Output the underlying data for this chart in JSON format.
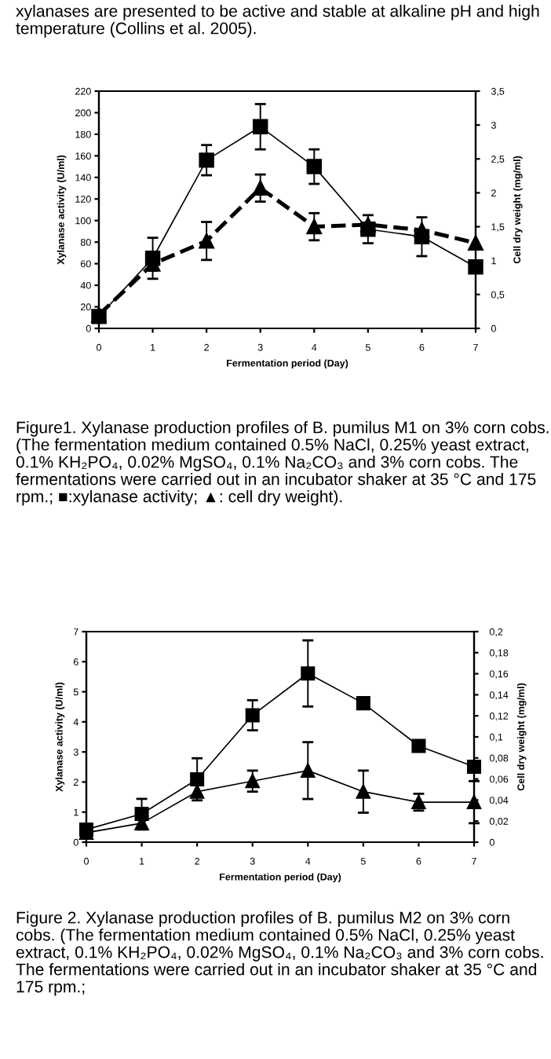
{
  "chart_data": [
    {
      "type": "line",
      "xlabel": "Fermentation period (Day)",
      "ylabel": "Xylanase activity (U/ml)",
      "y2label": "Cell dry weight (mg/ml)",
      "x": [
        0,
        1,
        2,
        3,
        4,
        5,
        6,
        7
      ],
      "xlim": [
        0,
        7
      ],
      "xticks": [
        0,
        1,
        2,
        3,
        4,
        5,
        6,
        7
      ],
      "ylim": [
        0,
        220
      ],
      "yticks": [
        0,
        20,
        40,
        60,
        80,
        100,
        120,
        140,
        160,
        180,
        200,
        220
      ],
      "y2lim": [
        0,
        3.5
      ],
      "y2ticks": [
        0,
        {
          "value": 0.5,
          "label": "0,5"
        },
        1,
        {
          "value": 1.5,
          "label": "1,5"
        },
        2,
        {
          "value": 2.5,
          "label": "2,5"
        },
        3,
        {
          "value": 3.5,
          "label": "3,5"
        }
      ],
      "series": [
        {
          "color": "#000000",
          "marker": "square",
          "line_style": "solid",
          "values": [
            11,
            65,
            156,
            187,
            150,
            92,
            85,
            57
          ],
          "errors": [
            null,
            19,
            14,
            21,
            16,
            13,
            18,
            5
          ]
        },
        {
          "color": "#000000",
          "marker": "triangle",
          "line_style": "dashed",
          "axis": "y2",
          "values": [
            0.2,
            0.95,
            1.29,
            2.07,
            1.5,
            1.53,
            1.45,
            1.26
          ],
          "errors": [
            null,
            0.1,
            0.28,
            0.2,
            0.2,
            null,
            null,
            null
          ]
        }
      ],
      "annotations": [
        "xylanases are presented to be active and stable at alkaline pH and high temperature (Collins et al. 2005).",
        "Figure1. Xylanase production profiles of B. pumilus M1 on 3% corn cobs. (The fermentation medium contained 0.5% NaCl, 0.25% yeast extract, 0.1% KH₂PO₄, 0.02% MgSO₄, 0.1% Na₂CO₃ and 3% corn cobs. The fermentations were carried out in an incubator shaker at 35 °C and 175 rpm.; ■:xylanase activity; ▲: cell dry weight)."
      ]
    },
    {
      "type": "line",
      "xlabel": "Fermentation period (Day)",
      "ylabel": "Xylanase activity (U/ml)",
      "y2label": "Cell dry weight (mg/ml)",
      "x": [
        0,
        1,
        2,
        3,
        4,
        5,
        6,
        7
      ],
      "xlim": [
        0,
        7
      ],
      "xticks": [
        0,
        1,
        2,
        3,
        4,
        5,
        6,
        7
      ],
      "ylim": [
        0,
        7
      ],
      "yticks": [
        0,
        1,
        2,
        3,
        4,
        5,
        6,
        7
      ],
      "y2lim": [
        0,
        0.2
      ],
      "y2ticks": [
        0,
        {
          "value": 0.02,
          "label": "0,02"
        },
        {
          "value": 0.04,
          "label": "0,04"
        },
        {
          "value": 0.06,
          "label": "0,06"
        },
        {
          "value": 0.08,
          "label": "0,08"
        },
        {
          "value": 0.1,
          "label": "0,1"
        },
        {
          "value": 0.12,
          "label": "0,12"
        },
        {
          "value": 0.14,
          "label": "0,14"
        },
        {
          "value": 0.16,
          "label": "0,16"
        },
        {
          "value": 0.18,
          "label": "0,18"
        },
        {
          "value": 0.2,
          "label": "0,2"
        }
      ],
      "series": [
        {
          "color": "#000000",
          "marker": "square",
          "line_style": "solid",
          "values": [
            0.42,
            0.94,
            2.09,
            4.22,
            5.61,
            4.62,
            3.2,
            2.51
          ],
          "errors": [
            null,
            0.5,
            0.7,
            0.5,
            1.1,
            null,
            null,
            null
          ]
        },
        {
          "color": "#000000",
          "marker": "triangle",
          "line_style": "solid",
          "axis": "y2",
          "values": [
            0.009,
            0.018,
            0.048,
            0.058,
            0.068,
            0.048,
            0.038,
            0.038
          ],
          "errors": [
            null,
            0.006,
            null,
            0.01,
            0.027,
            0.02,
            0.008,
            0.02
          ]
        }
      ],
      "annotations": [
        "Figure 2. Xylanase production profiles of B. pumilus M2 on 3% corn cobs. (The fermentation medium contained 0.5% NaCl, 0.25% yeast extract, 0.1% KH₂PO₄, 0.02% MgSO₄, 0.1% Na₂CO₃ and 3% corn cobs. The fermentations were carried out in an incubator shaker at 35 °C and 175 rpm.;"
      ]
    }
  ]
}
